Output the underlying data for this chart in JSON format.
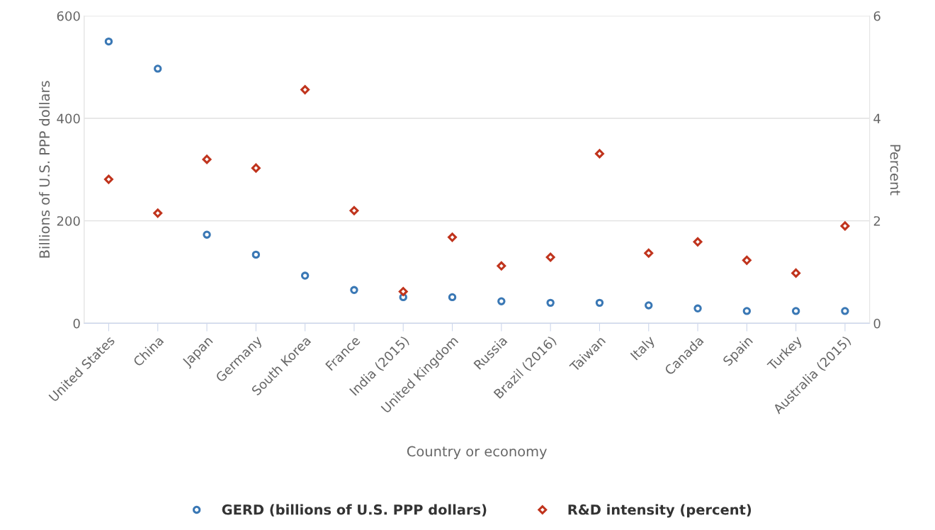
{
  "chart_data": {
    "type": "scatter",
    "xlabel": "Country or economy",
    "ylabel": "Billions of U.S. PPP dollars",
    "y2label": "Percent",
    "categories": [
      "United States",
      "China",
      "Japan",
      "Germany",
      "South Korea",
      "France",
      "India (2015)",
      "United Kingdom",
      "Russia",
      "Brazil (2016)",
      "Taiwan",
      "Italy",
      "Canada",
      "Spain",
      "Turkey",
      "Australia (2015)"
    ],
    "series": [
      {
        "name": "GERD (billions of U.S. PPP dollars)",
        "color": "#3a78b5",
        "marker": "circle",
        "values": [
          550,
          497,
          173,
          134,
          93,
          65,
          51,
          51,
          43,
          40,
          40,
          35,
          29,
          24,
          24,
          24
        ]
      },
      {
        "name": "R&D intensity (percent)",
        "color": "#c0341d",
        "marker": "diamond",
        "axis": "y2",
        "values": [
          2.81,
          2.15,
          3.2,
          3.03,
          4.56,
          2.2,
          0.62,
          1.68,
          1.12,
          1.29,
          3.31,
          1.37,
          1.59,
          1.23,
          0.98,
          1.9
        ]
      }
    ],
    "ylim": [
      0,
      600
    ],
    "yticks": [
      0,
      200,
      400,
      600
    ],
    "y2lim": [
      0,
      6
    ],
    "y2ticks": [
      0,
      2,
      4,
      6
    ],
    "grid": "y",
    "legend": "bottom"
  }
}
